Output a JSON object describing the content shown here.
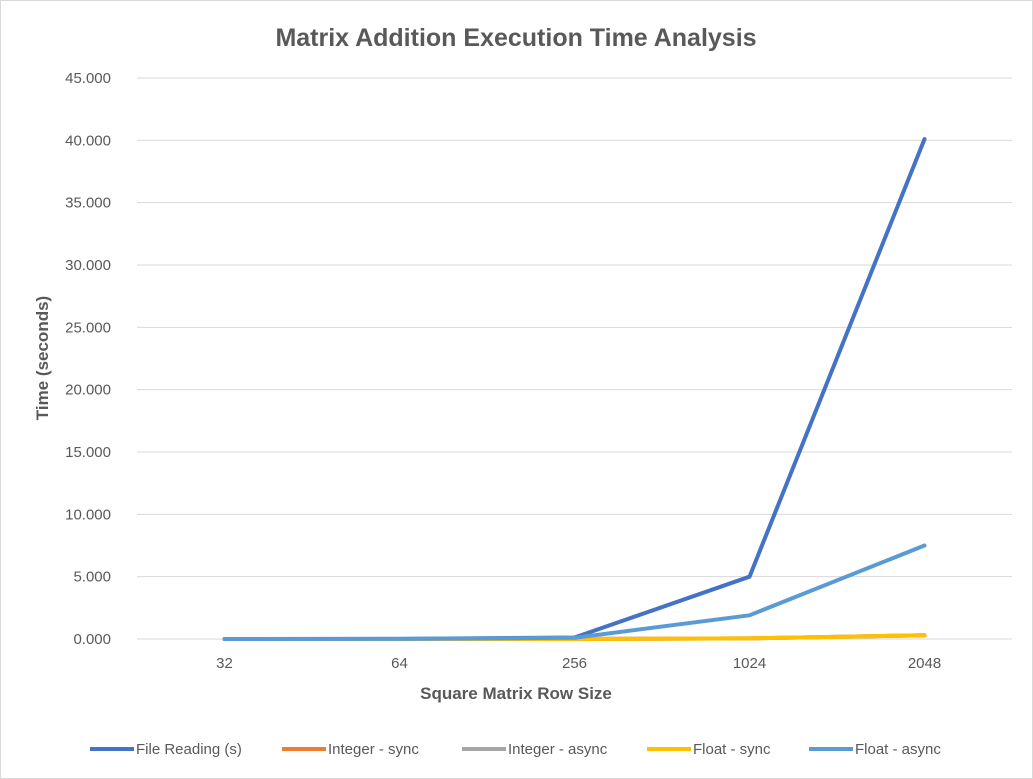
{
  "chart_data": {
    "type": "line",
    "title": "Matrix Addition Execution Time Analysis",
    "xlabel": "Square Matrix Row Size",
    "ylabel": "Time (seconds)",
    "categories": [
      "32",
      "64",
      "256",
      "1024",
      "2048"
    ],
    "ylim": [
      0,
      45
    ],
    "yticks": [
      "0.000",
      "5.000",
      "10.000",
      "15.000",
      "20.000",
      "25.000",
      "30.000",
      "35.000",
      "40.000",
      "45.000"
    ],
    "grid": "horizontal",
    "legend_position": "bottom",
    "series": [
      {
        "name": "File Reading (s)",
        "color": "#4472C4",
        "values": [
          0.002,
          0.01,
          0.12,
          5.0,
          40.1
        ]
      },
      {
        "name": "Integer - sync",
        "color": "#ED7D31",
        "values": [
          0.0,
          0.0,
          0.0,
          0.05,
          0.3
        ]
      },
      {
        "name": "Integer - async",
        "color": "#A5A5A5",
        "values": [
          0.0,
          0.0,
          0.0,
          0.05,
          0.3
        ]
      },
      {
        "name": "Float - sync",
        "color": "#FFC000",
        "values": [
          0.0,
          0.0,
          0.0,
          0.05,
          0.3
        ]
      },
      {
        "name": "Float - async",
        "color": "#5B9BD5",
        "values": [
          0.002,
          0.01,
          0.1,
          1.9,
          7.5
        ]
      }
    ]
  }
}
